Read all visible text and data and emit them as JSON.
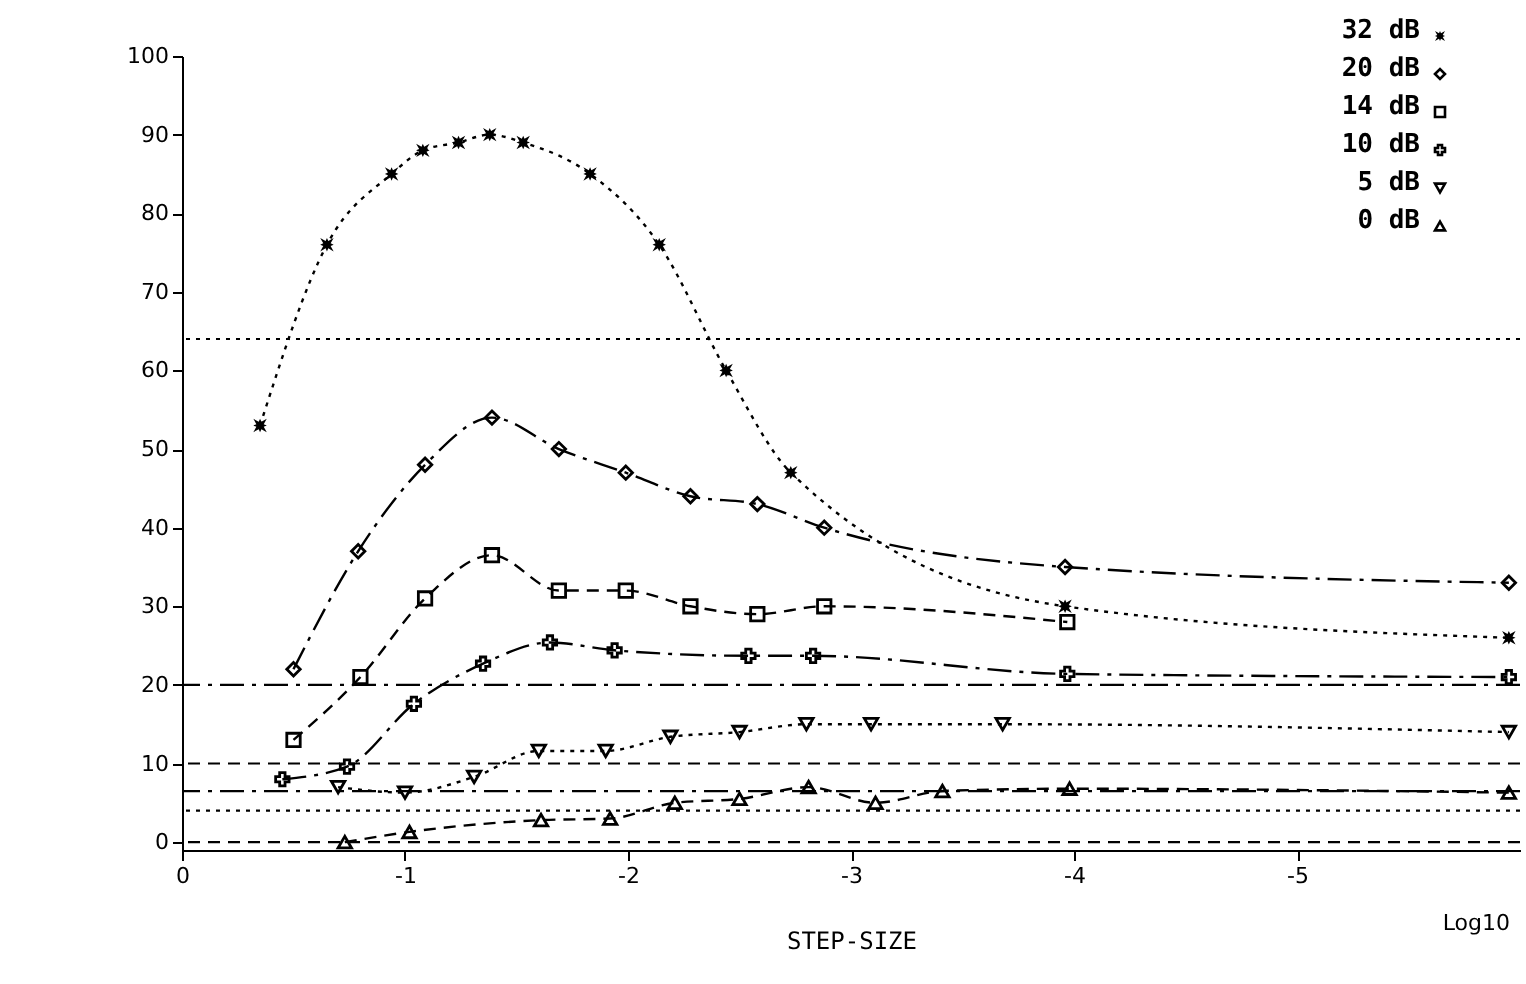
{
  "chart_data": {
    "type": "line",
    "xlabel": "STEP-SIZE",
    "annotations": [
      "Log10"
    ],
    "xlim": [
      0,
      -6
    ],
    "xticks": [
      0,
      -1,
      -2,
      -3,
      -4,
      -5
    ],
    "ylim": [
      -1,
      100
    ],
    "yticks": [
      0,
      10,
      20,
      30,
      40,
      50,
      60,
      70,
      80,
      90,
      100
    ],
    "grid": false,
    "legend": "top right",
    "series": [
      {
        "name": "32 dB",
        "color": "#000000",
        "marker": "star",
        "line_style": "dotted",
        "x": [
          -0.35,
          -0.65,
          -0.94,
          -1.08,
          -1.24,
          -1.38,
          -1.53,
          -1.83,
          -2.14,
          -2.44,
          -2.73,
          -3.96,
          -5.95
        ],
        "values": [
          53,
          76,
          85,
          88,
          89,
          90,
          89,
          85,
          76,
          60,
          47,
          30,
          26
        ]
      },
      {
        "name": "20 dB",
        "color": "#000000",
        "marker": "diamond",
        "line_style": "dashdot",
        "x": [
          -0.5,
          -0.79,
          -1.09,
          -1.39,
          -1.69,
          -1.99,
          -2.28,
          -2.58,
          -2.88,
          -3.96,
          -5.95
        ],
        "values": [
          22,
          37,
          48,
          54,
          50,
          47,
          44,
          43,
          40,
          35,
          33
        ]
      },
      {
        "name": "14 dB",
        "color": "#000000",
        "marker": "square",
        "line_style": "dashed",
        "x": [
          -0.5,
          -0.8,
          -1.09,
          -1.39,
          -1.69,
          -1.99,
          -2.28,
          -2.58,
          -2.88,
          -3.97
        ],
        "values": [
          13,
          21,
          31,
          36.5,
          32,
          32,
          30,
          29,
          30,
          28
        ]
      },
      {
        "name": "10 dB",
        "color": "#000000",
        "marker": "cross",
        "line_style": "dashdot",
        "x": [
          -0.45,
          -0.74,
          -1.04,
          -1.35,
          -1.65,
          -1.94,
          -2.54,
          -2.83,
          -3.97,
          -5.95
        ],
        "values": [
          8,
          9.6,
          17.6,
          22.7,
          25.4,
          24.4,
          23.7,
          23.7,
          21.4,
          21
        ]
      },
      {
        "name": "5 dB",
        "color": "#000000",
        "marker": "triangle-down",
        "line_style": "dotted",
        "x": [
          -0.7,
          -1.0,
          -1.31,
          -1.6,
          -1.9,
          -2.19,
          -2.5,
          -2.8,
          -3.09,
          -3.68,
          -5.95
        ],
        "values": [
          7,
          6.3,
          8.3,
          11.6,
          11.6,
          13.4,
          14,
          15,
          15,
          15,
          14
        ]
      },
      {
        "name": "0 dB",
        "color": "#000000",
        "marker": "triangle",
        "line_style": "dashed",
        "x": [
          -0.73,
          -1.02,
          -1.61,
          -1.92,
          -2.21,
          -2.5,
          -2.81,
          -3.11,
          -3.41,
          -3.98,
          -5.95
        ],
        "values": [
          0,
          1.3,
          2.8,
          3,
          5,
          5.5,
          7,
          5,
          6.5,
          6.8,
          6.3
        ]
      }
    ],
    "ref_lines": [
      {
        "axis": "y",
        "value": 64,
        "color": "#000000",
        "line_style": "dotted"
      },
      {
        "axis": "y",
        "value": 20,
        "color": "#000000",
        "line_style": "dashdot"
      },
      {
        "axis": "y",
        "value": 10,
        "color": "#000000",
        "line_style": "dashed"
      },
      {
        "axis": "y",
        "value": 6.5,
        "color": "#000000",
        "line_style": "dashdot"
      },
      {
        "axis": "y",
        "value": 4,
        "color": "#000000",
        "line_style": "dotted"
      },
      {
        "axis": "y",
        "value": 0,
        "color": "#000000",
        "line_style": "dashed"
      }
    ]
  }
}
